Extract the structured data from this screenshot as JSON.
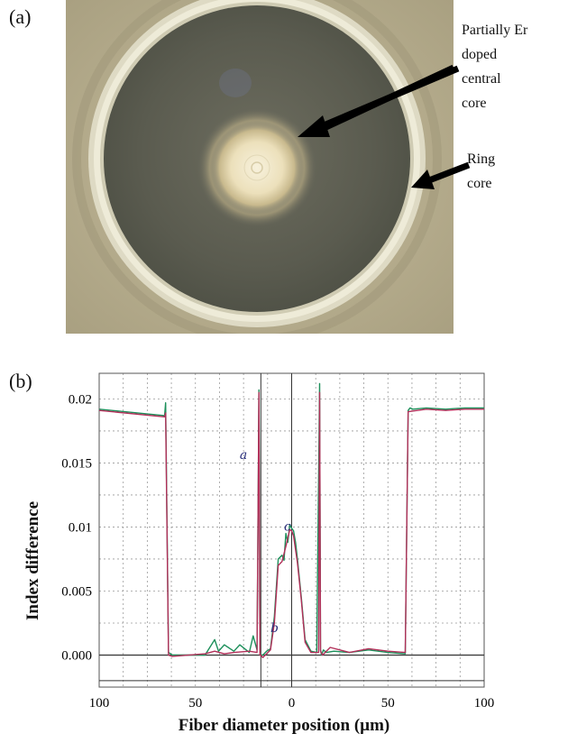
{
  "panels": {
    "a_label": "(a)",
    "b_label": "(b)"
  },
  "annotations": {
    "central_core": [
      "Partially Er",
      "doped",
      "central",
      "core"
    ],
    "ring_core": [
      "Ring",
      "core"
    ]
  },
  "colors": {
    "micrograph_bg": "#b3a98a",
    "cladding_dark": "#595b4f",
    "ring_light": "#e9e6d2",
    "core_glow": "#f3ead0",
    "trace_green": "#1c8f5a",
    "trace_red": "#b2305a"
  },
  "chart_data": {
    "type": "line",
    "title": "",
    "xlabel": "Fiber diameter position (µm)",
    "ylabel": "Index difference",
    "xlim": [
      -100,
      100
    ],
    "ylim": [
      -0.0025,
      0.022
    ],
    "x_ticks": [
      -100,
      -50,
      0,
      50,
      100
    ],
    "x_tick_labels": [
      "100",
      "50",
      "0",
      "50",
      "100"
    ],
    "y_ticks": [
      0.0,
      0.005,
      0.01,
      0.015,
      0.02
    ],
    "y_tick_labels": [
      "0.000",
      "0.005",
      "0.01",
      "0.015",
      "0.02"
    ],
    "grid": true,
    "handwritten_marks": [
      "a",
      "b",
      "c"
    ],
    "series": [
      {
        "color": "#1c8f5a",
        "x": [
          -100,
          -66,
          -65.5,
          -64,
          -62,
          -45,
          -40,
          -38,
          -35,
          -30,
          -27,
          -22,
          -20,
          -18,
          -17,
          -16.5,
          -16,
          -15,
          -13,
          -11,
          -9,
          -7,
          -5,
          -4,
          -3,
          -2,
          -1,
          0,
          1,
          2,
          3,
          5,
          7,
          10,
          13,
          14.5,
          15,
          15.5,
          16.5,
          18,
          22,
          30,
          40,
          50,
          59,
          60.5,
          61.5,
          63,
          70,
          80,
          90,
          100
        ],
        "y": [
          0.0192,
          0.0187,
          0.0197,
          0.0002,
          0.0,
          0.0,
          0.0012,
          0.0003,
          0.0008,
          0.0003,
          0.0008,
          0.0002,
          0.0015,
          0.0004,
          0.0207,
          0.0002,
          0.0,
          0.0,
          0.0003,
          0.0005,
          0.003,
          0.0075,
          0.0078,
          0.0074,
          0.0095,
          0.0088,
          0.0102,
          0.0099,
          0.0097,
          0.0088,
          0.0075,
          0.0045,
          0.0012,
          0.0003,
          0.0002,
          0.0212,
          0.0004,
          0.0,
          0.0004,
          0.0002,
          0.0003,
          0.0002,
          0.0004,
          0.0002,
          0.0001,
          0.0191,
          0.0193,
          0.0192,
          0.0193,
          0.0192,
          0.0193,
          0.0193
        ]
      },
      {
        "color": "#b2305a",
        "x": [
          -100,
          -66,
          -65.5,
          -64,
          -62,
          -45,
          -40,
          -35,
          -30,
          -22,
          -18,
          -17,
          -16.5,
          -16,
          -15,
          -11,
          -9,
          -7,
          -5,
          -3,
          -1,
          0,
          1,
          3,
          5,
          7,
          10,
          14,
          14.5,
          15,
          16,
          20,
          30,
          40,
          50,
          59,
          60.5,
          70,
          80,
          90,
          100
        ],
        "y": [
          0.0191,
          0.0186,
          0.0189,
          0.0,
          -0.0001,
          0.0001,
          0.0003,
          0.0001,
          0.0002,
          0.0003,
          0.0002,
          0.0205,
          0.0,
          0.0,
          -0.0002,
          0.0004,
          0.0025,
          0.007,
          0.0073,
          0.0085,
          0.0098,
          0.0097,
          0.0093,
          0.0072,
          0.0043,
          0.001,
          0.0002,
          0.0002,
          0.0205,
          0.0003,
          0.0,
          0.0006,
          0.0002,
          0.0005,
          0.0003,
          0.0002,
          0.019,
          0.0192,
          0.0191,
          0.0192,
          0.0192
        ]
      }
    ]
  }
}
